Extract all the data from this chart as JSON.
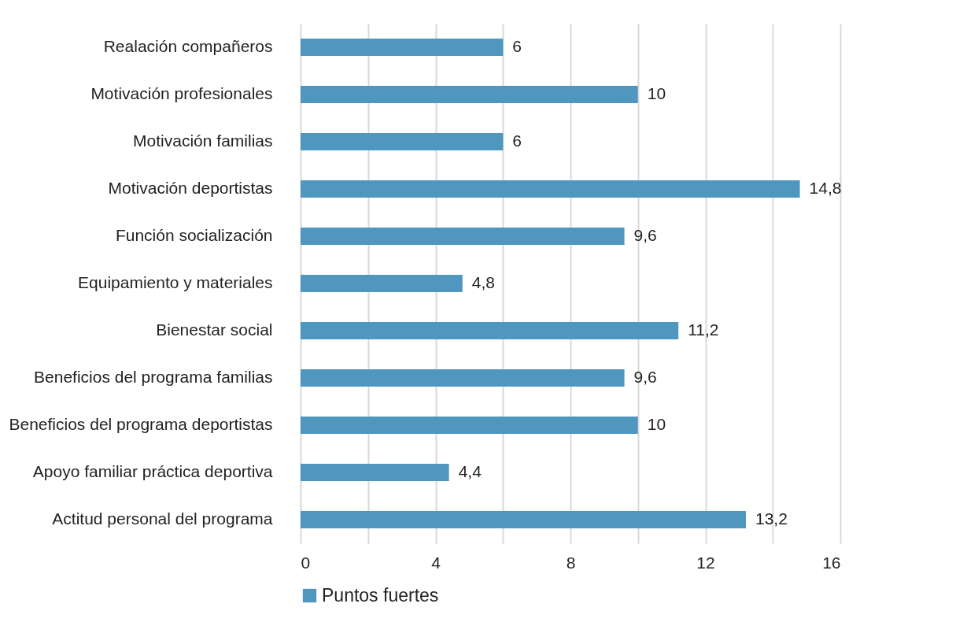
{
  "chart_data": {
    "type": "bar",
    "orientation": "horizontal",
    "categories": [
      "Realación compañeros",
      "Motivación profesionales",
      "Motivación familias",
      "Motivación deportistas",
      "Función socialización",
      "Equipamiento y materiales",
      "Bienestar social",
      "Beneficios del programa familias",
      "Beneficios del programa deportistas",
      "Apoyo familiar práctica deportiva",
      "Actitud personal del programa"
    ],
    "series": [
      {
        "name": "Puntos fuertes",
        "color": "#5097c0",
        "values": [
          6,
          10,
          6,
          14.8,
          9.6,
          4.8,
          11.2,
          9.6,
          10,
          4.4,
          13.2
        ],
        "value_labels": [
          "6",
          "10",
          "6",
          "14,8",
          "9,6",
          "4,8",
          "11,2",
          "9,6",
          "10",
          "4,4",
          "13,2"
        ]
      }
    ],
    "xlim": [
      0,
      16
    ],
    "xticks": [
      0,
      {
        "value": 2,
        "label": null
      },
      4,
      {
        "value": 6,
        "label": null
      },
      8,
      {
        "value": 10,
        "label": null
      },
      12,
      {
        "value": 14,
        "label": null
      },
      16
    ],
    "grid": "x",
    "legend": "bottom"
  }
}
